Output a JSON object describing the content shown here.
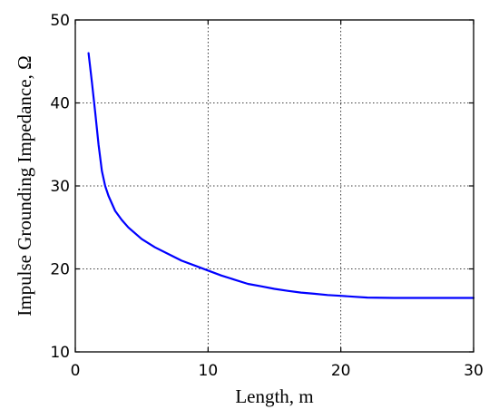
{
  "chart_data": {
    "type": "line",
    "title": "",
    "xlabel": "Length, m",
    "ylabel": "Impulse Grounding Impedance, Ω",
    "xlim": [
      0,
      30
    ],
    "ylim": [
      10,
      50
    ],
    "xticks": [
      "0",
      "10",
      "20",
      "30"
    ],
    "yticks": [
      "10",
      "20",
      "30",
      "40",
      "50"
    ],
    "grid": true,
    "series": [
      {
        "name": "",
        "color": "#0000ff",
        "x": [
          1.0,
          1.25,
          1.5,
          1.75,
          2.0,
          2.25,
          2.5,
          3.0,
          3.5,
          4.0,
          5.0,
          6.0,
          7.0,
          8.0,
          9.0,
          10.0,
          11.0,
          12.0,
          13.0,
          14.0,
          15.0,
          16.0,
          17.0,
          18.0,
          19.0,
          20.0,
          21.0,
          22.0,
          24.0,
          26.0,
          28.0,
          30.0
        ],
        "y": [
          46.0,
          42.5,
          38.8,
          35.0,
          31.8,
          30.0,
          28.8,
          27.0,
          25.9,
          25.0,
          23.6,
          22.6,
          21.8,
          21.0,
          20.4,
          19.8,
          19.2,
          18.7,
          18.2,
          17.9,
          17.6,
          17.35,
          17.15,
          17.0,
          16.85,
          16.75,
          16.65,
          16.55,
          16.5,
          16.5,
          16.5,
          16.5
        ]
      }
    ]
  }
}
